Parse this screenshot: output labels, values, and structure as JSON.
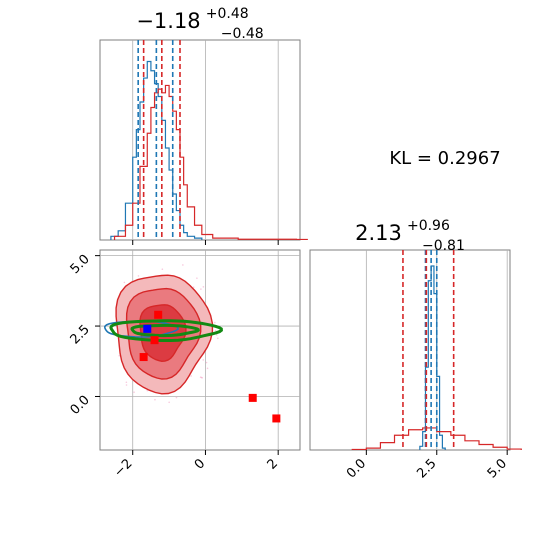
{
  "chart_data": {
    "type": "corner",
    "annotation": "KL = 0.2967",
    "colors": {
      "hist_a": "#1f77b4",
      "hist_b": "#d62728",
      "contour_ref": "#138a13",
      "marker_a": "#0000ff",
      "marker_b": "#ff0000"
    },
    "grid": true,
    "panels": [
      {
        "id": "hist-param-1",
        "type": "histogram",
        "title_median": "−1.18",
        "title_plus": "+0.48",
        "title_minus": "−0.48",
        "xlim": [
          -2.9,
          2.6
        ],
        "x_ticks": [
          -2,
          0,
          2
        ],
        "series": [
          {
            "name": "",
            "color": "#1f77b4",
            "quantiles": [
              -1.85,
              -0.9
            ],
            "median": -1.35,
            "x": [
              -2.6,
              -2.4,
              -2.2,
              -2.0,
              -1.9,
              -1.8,
              -1.7,
              -1.6,
              -1.5,
              -1.4,
              -1.3,
              -1.2,
              -1.1,
              -1.0,
              -0.9,
              -0.8,
              -0.7,
              -0.6,
              -0.5,
              -0.3
            ],
            "y": [
              0.02,
              0.05,
              0.2,
              0.45,
              0.6,
              0.75,
              0.88,
              0.97,
              0.92,
              0.85,
              0.78,
              0.65,
              0.5,
              0.38,
              0.25,
              0.16,
              0.08,
              0.04,
              0.02,
              0.01
            ]
          },
          {
            "name": "",
            "color": "#d62728",
            "quantiles": [
              -1.7,
              -0.7
            ],
            "median": -1.2,
            "x": [
              -2.5,
              -2.2,
              -2.0,
              -1.8,
              -1.6,
              -1.5,
              -1.4,
              -1.3,
              -1.2,
              -1.1,
              -1.0,
              -0.9,
              -0.8,
              -0.7,
              -0.6,
              -0.5,
              -0.3,
              -0.1,
              0.2,
              0.9,
              2.5
            ],
            "y": [
              0.02,
              0.08,
              0.2,
              0.4,
              0.58,
              0.72,
              0.8,
              0.82,
              0.8,
              0.84,
              0.78,
              0.7,
              0.6,
              0.45,
              0.3,
              0.18,
              0.08,
              0.03,
              0.01,
              0.004,
              0.003
            ]
          }
        ]
      },
      {
        "id": "scatter-param-1-2",
        "type": "contour",
        "xlim": [
          -2.9,
          2.6
        ],
        "ylim": [
          -1.9,
          5.2
        ],
        "x_ticks": [
          -2,
          0,
          2
        ],
        "y_ticks": [
          0.0,
          2.5,
          5.0
        ],
        "y_tick_labels": [
          "0.0",
          "2.5",
          "5.0"
        ],
        "x_tick_labels": [
          "−2",
          "0",
          "2"
        ],
        "red_contour_center": [
          -1.2,
          2.3
        ],
        "red_contour_radii": [
          [
            1.3,
            2.1
          ],
          [
            1.0,
            1.6
          ],
          [
            0.62,
            1.0
          ]
        ],
        "blue_contour": {
          "center": [
            -1.8,
            2.4
          ],
          "radii": [
            1.0,
            0.28
          ]
        },
        "green_contours": [
          {
            "center": [
              -1.15,
              2.35
            ],
            "radii": [
              1.5,
              0.35
            ]
          },
          {
            "center": [
              -1.15,
              2.35
            ],
            "radii": [
              0.9,
              0.18
            ]
          }
        ],
        "red_squares": [
          [
            -1.3,
            2.9
          ],
          [
            -1.4,
            2.0
          ],
          [
            -1.7,
            1.4
          ],
          [
            1.3,
            -0.05
          ],
          [
            1.95,
            -0.78
          ]
        ],
        "blue_square": [
          -1.6,
          2.4
        ]
      },
      {
        "id": "hist-param-2",
        "type": "histogram",
        "title_median": "2.13",
        "title_plus": "+0.96",
        "title_minus": "−0.81",
        "xlim": [
          -2.0,
          5.1
        ],
        "x_ticks": [
          0.0,
          2.5,
          5.0
        ],
        "x_tick_labels": [
          "0.0",
          "2.5",
          "5.0"
        ],
        "series": [
          {
            "name": "",
            "color": "#1f77b4",
            "quantiles": [
              2.1,
              2.5
            ],
            "median": 2.3,
            "x": [
              1.9,
              2.0,
              2.1,
              2.2,
              2.3,
              2.4,
              2.5,
              2.6,
              2.7
            ],
            "y": [
              0.02,
              0.1,
              0.45,
              0.92,
              1.0,
              0.85,
              0.4,
              0.08,
              0.01
            ]
          },
          {
            "name": "",
            "color": "#d62728",
            "quantiles": [
              1.3,
              3.1
            ],
            "median": 2.13,
            "x": [
              -0.5,
              0.0,
              0.5,
              1.0,
              1.5,
              2.0,
              2.5,
              3.0,
              3.5,
              4.0,
              4.5,
              5.0
            ],
            "y": [
              0.003,
              0.01,
              0.04,
              0.08,
              0.11,
              0.12,
              0.1,
              0.08,
              0.05,
              0.03,
              0.015,
              0.005
            ]
          }
        ]
      }
    ]
  }
}
